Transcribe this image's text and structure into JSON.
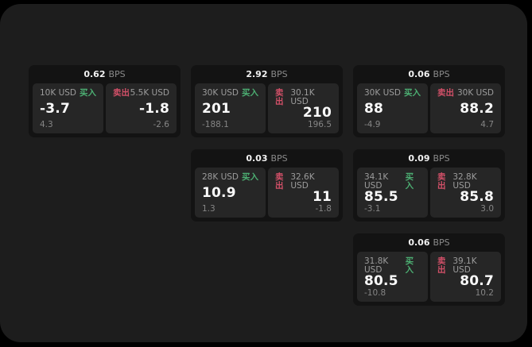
{
  "labels": {
    "bps_unit": "BPS",
    "buy": "买入",
    "sell": "卖出"
  },
  "colors": {
    "buy_accent": "#4cae72",
    "sell_accent": "#d25068",
    "window_bg": "#1d1d1d",
    "card_bg": "#131313",
    "panel_bg": "#262626",
    "outer_bg": "#000000"
  },
  "cards": [
    {
      "bps": "0.62",
      "buy": {
        "size": "10K USD",
        "price": "-3.7",
        "change": "4.3"
      },
      "sell": {
        "size": "5.5K USD",
        "price": "-1.8",
        "change": "-2.6"
      }
    },
    {
      "bps": "2.92",
      "buy": {
        "size": "30K USD",
        "price": "201",
        "change": "-188.1"
      },
      "sell": {
        "size": "30.1K USD",
        "price": "210",
        "change": "196.5"
      }
    },
    {
      "bps": "0.06",
      "buy": {
        "size": "30K USD",
        "price": "88",
        "change": "-4.9"
      },
      "sell": {
        "size": "30K USD",
        "price": "88.2",
        "change": "4.7"
      }
    },
    {
      "bps": "0.03",
      "buy": {
        "size": "28K USD",
        "price": "10.9",
        "change": "1.3"
      },
      "sell": {
        "size": "32.6K USD",
        "price": "11",
        "change": "-1.8"
      }
    },
    {
      "bps": "0.09",
      "buy": {
        "size": "34.1K USD",
        "price": "85.5",
        "change": "-3.1"
      },
      "sell": {
        "size": "32.8K USD",
        "price": "85.8",
        "change": "3.0"
      }
    },
    {
      "bps": "0.06",
      "buy": {
        "size": "31.8K USD",
        "price": "80.5",
        "change": "-10.8"
      },
      "sell": {
        "size": "39.1K USD",
        "price": "80.7",
        "change": "10.2"
      }
    }
  ]
}
